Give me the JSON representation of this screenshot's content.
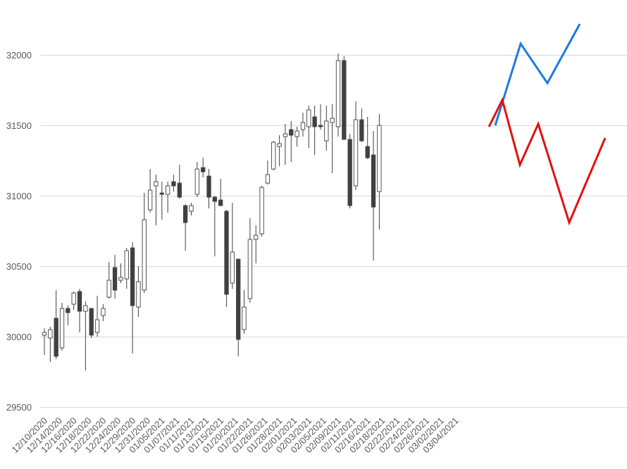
{
  "chart_data": {
    "type": "candlestick",
    "y_ticks": [
      29500,
      30000,
      30500,
      31000,
      31500,
      32000
    ],
    "ylim": [
      29500,
      32200
    ],
    "grid": true,
    "x_tick_labels": [
      "12/10/2020",
      "12/14/2020",
      "12/16/2020",
      "12/18/2020",
      "12/22/2020",
      "12/24/2020",
      "12/29/2020",
      "12/31/2020",
      "01/05/2021",
      "01/07/2021",
      "01/11/2021",
      "01/13/2021",
      "01/15/2021",
      "01/20/2021",
      "01/22/2021",
      "01/26/2021",
      "01/28/2021",
      "02/01/2021",
      "02/03/2021",
      "02/05/2021",
      "02/09/2021",
      "02/11/2021",
      "02/16/2021",
      "02/18/2021",
      "02/22/2021",
      "02/24/2021",
      "02/26/2021",
      "03/02/2021",
      "03/04/2021"
    ],
    "candles": [
      {
        "o": 30010,
        "h": 30060,
        "l": 29870,
        "c": 30030
      },
      {
        "o": 29990,
        "h": 30070,
        "l": 29820,
        "c": 30050
      },
      {
        "o": 30130,
        "h": 30330,
        "l": 29840,
        "c": 29860
      },
      {
        "o": 29920,
        "h": 30240,
        "l": 29900,
        "c": 30200
      },
      {
        "o": 30200,
        "h": 30220,
        "l": 30080,
        "c": 30170
      },
      {
        "o": 30230,
        "h": 30320,
        "l": 30190,
        "c": 30310
      },
      {
        "o": 30320,
        "h": 30340,
        "l": 30030,
        "c": 30180
      },
      {
        "o": 30180,
        "h": 30250,
        "l": 29760,
        "c": 30220
      },
      {
        "o": 30200,
        "h": 30200,
        "l": 29990,
        "c": 30010
      },
      {
        "o": 30030,
        "h": 30290,
        "l": 30000,
        "c": 30120
      },
      {
        "o": 30150,
        "h": 30230,
        "l": 30110,
        "c": 30200
      },
      {
        "o": 30280,
        "h": 30530,
        "l": 30270,
        "c": 30400
      },
      {
        "o": 30490,
        "h": 30580,
        "l": 30270,
        "c": 30330
      },
      {
        "o": 30400,
        "h": 30520,
        "l": 30380,
        "c": 30420
      },
      {
        "o": 30410,
        "h": 30630,
        "l": 30340,
        "c": 30610
      },
      {
        "o": 30630,
        "h": 30670,
        "l": 29880,
        "c": 30220
      },
      {
        "o": 30210,
        "h": 30500,
        "l": 30140,
        "c": 30390
      },
      {
        "o": 30330,
        "h": 31020,
        "l": 30310,
        "c": 30830
      },
      {
        "o": 30900,
        "h": 31190,
        "l": 30880,
        "c": 31040
      },
      {
        "o": 31070,
        "h": 31150,
        "l": 30790,
        "c": 31100
      },
      {
        "o": 31020,
        "h": 31100,
        "l": 30830,
        "c": 31010
      },
      {
        "o": 31010,
        "h": 31100,
        "l": 30880,
        "c": 31070
      },
      {
        "o": 31100,
        "h": 31150,
        "l": 31030,
        "c": 31070
      },
      {
        "o": 31090,
        "h": 31220,
        "l": 30980,
        "c": 30990
      },
      {
        "o": 30930,
        "h": 30940,
        "l": 30610,
        "c": 30810
      },
      {
        "o": 30890,
        "h": 30950,
        "l": 30860,
        "c": 30930
      },
      {
        "o": 31010,
        "h": 31240,
        "l": 30990,
        "c": 31190
      },
      {
        "o": 31200,
        "h": 31270,
        "l": 31130,
        "c": 31170
      },
      {
        "o": 31140,
        "h": 31190,
        "l": 30910,
        "c": 30990
      },
      {
        "o": 30990,
        "h": 31000,
        "l": 30570,
        "c": 30960
      },
      {
        "o": 30970,
        "h": 31120,
        "l": 30930,
        "c": 30930
      },
      {
        "o": 30890,
        "h": 30900,
        "l": 30210,
        "c": 30300
      },
      {
        "o": 30380,
        "h": 30950,
        "l": 30340,
        "c": 30600
      },
      {
        "o": 30550,
        "h": 30550,
        "l": 29860,
        "c": 29980
      },
      {
        "o": 30050,
        "h": 30330,
        "l": 30020,
        "c": 30210
      },
      {
        "o": 30270,
        "h": 30840,
        "l": 30240,
        "c": 30690
      },
      {
        "o": 30690,
        "h": 30790,
        "l": 30520,
        "c": 30720
      },
      {
        "o": 30730,
        "h": 31070,
        "l": 30710,
        "c": 31060
      },
      {
        "o": 31090,
        "h": 31250,
        "l": 31080,
        "c": 31150
      },
      {
        "o": 31190,
        "h": 31390,
        "l": 31180,
        "c": 31380
      },
      {
        "o": 31350,
        "h": 31430,
        "l": 31210,
        "c": 31370
      },
      {
        "o": 31420,
        "h": 31510,
        "l": 31220,
        "c": 31440
      },
      {
        "o": 31470,
        "h": 31530,
        "l": 31240,
        "c": 31430
      },
      {
        "o": 31420,
        "h": 31490,
        "l": 31350,
        "c": 31460
      },
      {
        "o": 31470,
        "h": 31590,
        "l": 31420,
        "c": 31520
      },
      {
        "o": 31490,
        "h": 31640,
        "l": 31340,
        "c": 31610
      },
      {
        "o": 31560,
        "h": 31640,
        "l": 31290,
        "c": 31490
      },
      {
        "o": 31500,
        "h": 31650,
        "l": 31470,
        "c": 31490
      },
      {
        "o": 31390,
        "h": 31640,
        "l": 31320,
        "c": 31530
      },
      {
        "o": 31520,
        "h": 31650,
        "l": 31160,
        "c": 31550
      },
      {
        "o": 31490,
        "h": 32010,
        "l": 31420,
        "c": 31960
      },
      {
        "o": 31960,
        "h": 31990,
        "l": 31420,
        "c": 31400
      },
      {
        "o": 31400,
        "h": 31440,
        "l": 30910,
        "c": 30930
      },
      {
        "o": 31070,
        "h": 31670,
        "l": 31040,
        "c": 31540
      },
      {
        "o": 31540,
        "h": 31620,
        "l": 31380,
        "c": 31390
      },
      {
        "o": 31350,
        "h": 31560,
        "l": 31260,
        "c": 31270
      },
      {
        "o": 31290,
        "h": 31460,
        "l": 30540,
        "c": 30920
      },
      {
        "o": 31030,
        "h": 31580,
        "l": 30760,
        "c": 31500
      }
    ],
    "series": [
      {
        "color": "#1f7ae0",
        "y": [
          31500,
          32080,
          31800,
          32220
        ]
      },
      {
        "color": "#e31010",
        "y": [
          31490,
          31680,
          31220,
          31510,
          30810,
          31410
        ]
      }
    ],
    "colors": {
      "bear": "#404040",
      "bull_fill": "#ffffff",
      "outline": "#404040",
      "grid": "#d9d9d9",
      "axis_text": "#595959"
    }
  }
}
